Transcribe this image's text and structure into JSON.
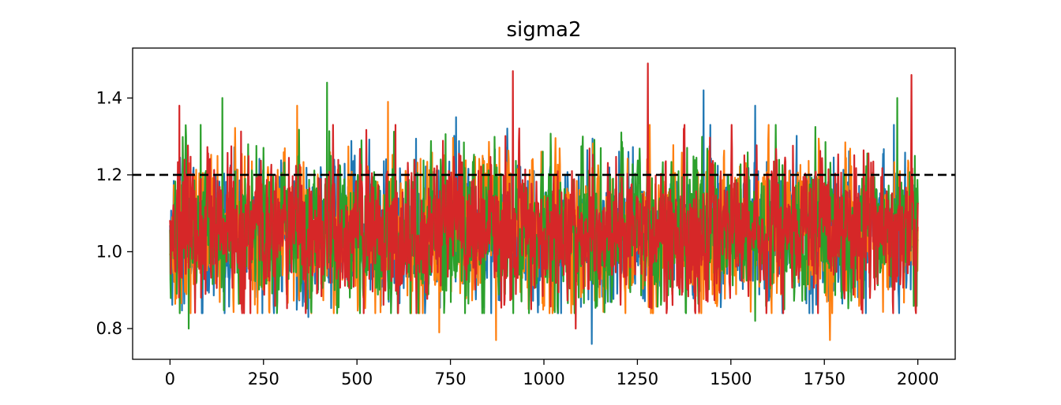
{
  "chart_data": {
    "type": "line",
    "title": "sigma2",
    "xlabel": "",
    "ylabel": "",
    "xlim": [
      -100,
      2100
    ],
    "ylim": [
      0.72,
      1.53
    ],
    "x_ticks": [
      0,
      250,
      500,
      750,
      1000,
      1250,
      1500,
      1750,
      2000
    ],
    "x_tick_labels": [
      "0",
      "250",
      "500",
      "750",
      "1000",
      "1250",
      "1500",
      "1750",
      "2000"
    ],
    "y_ticks": [
      0.8,
      1.0,
      1.2,
      1.4
    ],
    "y_tick_labels": [
      "0.8",
      "1.0",
      "1.2",
      "1.4"
    ],
    "grid": false,
    "reference_line": {
      "y": 1.2,
      "style": "dashed",
      "color": "#000000"
    },
    "n_samples_per_series": 2001,
    "series_x_range": [
      0,
      2000
    ],
    "colors": [
      "#1f77b4",
      "#ff7f0e",
      "#2ca02c",
      "#d62728"
    ],
    "series": [
      {
        "color": "#1f77b4",
        "approx_mean": 1.05,
        "extremes": [
          {
            "x": 1427,
            "y": 1.42
          },
          {
            "x": 1128,
            "y": 0.76
          },
          {
            "x": 1565,
            "y": 1.38
          },
          {
            "x": 765,
            "y": 1.35
          },
          {
            "x": 370,
            "y": 0.83
          }
        ]
      },
      {
        "color": "#ff7f0e",
        "approx_mean": 1.05,
        "extremes": [
          {
            "x": 583,
            "y": 1.39
          },
          {
            "x": 340,
            "y": 1.38
          },
          {
            "x": 872,
            "y": 0.77
          },
          {
            "x": 1765,
            "y": 0.77
          },
          {
            "x": 720,
            "y": 0.79
          }
        ]
      },
      {
        "color": "#2ca02c",
        "approx_mean": 1.05,
        "extremes": [
          {
            "x": 420,
            "y": 1.44
          },
          {
            "x": 140,
            "y": 1.4
          },
          {
            "x": 1945,
            "y": 1.4
          },
          {
            "x": 50,
            "y": 0.8
          },
          {
            "x": 1565,
            "y": 0.82
          }
        ]
      },
      {
        "color": "#d62728",
        "approx_mean": 1.05,
        "extremes": [
          {
            "x": 1278,
            "y": 1.49
          },
          {
            "x": 917,
            "y": 1.47
          },
          {
            "x": 1983,
            "y": 1.46
          },
          {
            "x": 1085,
            "y": 0.8
          },
          {
            "x": 25,
            "y": 1.38
          }
        ]
      }
    ]
  }
}
